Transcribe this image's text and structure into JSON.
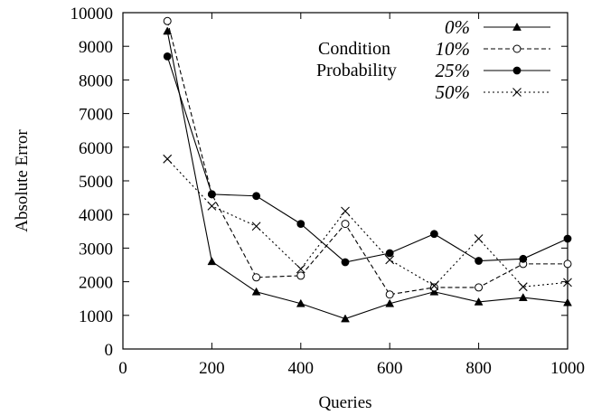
{
  "chart_data": {
    "type": "line",
    "xlabel": "Queries",
    "ylabel": "Absolute Error",
    "xlim": [
      0,
      1000
    ],
    "ylim": [
      0,
      10000
    ],
    "xticks": [
      "0",
      "200",
      "400",
      "600",
      "800",
      "1000"
    ],
    "yticks": [
      "0",
      "1000",
      "2000",
      "3000",
      "4000",
      "5000",
      "6000",
      "7000",
      "8000",
      "9000",
      "10000"
    ],
    "grid": false,
    "legend": {
      "placement": "top-right",
      "title_lines": [
        "Condition",
        "Probability"
      ]
    },
    "x": [
      100,
      200,
      300,
      400,
      500,
      600,
      700,
      800,
      900,
      1000
    ],
    "series": [
      {
        "name": "0%",
        "marker": "filled-triangle",
        "line": "solid",
        "values": [
          9450,
          2600,
          1700,
          1350,
          900,
          1350,
          1700,
          1400,
          1530,
          1380
        ]
      },
      {
        "name": "10%",
        "marker": "open-circle",
        "line": "dashed",
        "values": [
          9750,
          4600,
          2130,
          2180,
          3720,
          1620,
          1830,
          1830,
          2530,
          2530
        ]
      },
      {
        "name": "25%",
        "marker": "filled-circle",
        "line": "solid",
        "values": [
          8700,
          4600,
          4550,
          3720,
          2580,
          2850,
          3420,
          2620,
          2680,
          3280
        ]
      },
      {
        "name": "50%",
        "marker": "x",
        "line": "dotted",
        "values": [
          5650,
          4250,
          3650,
          2380,
          4100,
          2650,
          1880,
          3280,
          1850,
          1980
        ]
      }
    ]
  }
}
